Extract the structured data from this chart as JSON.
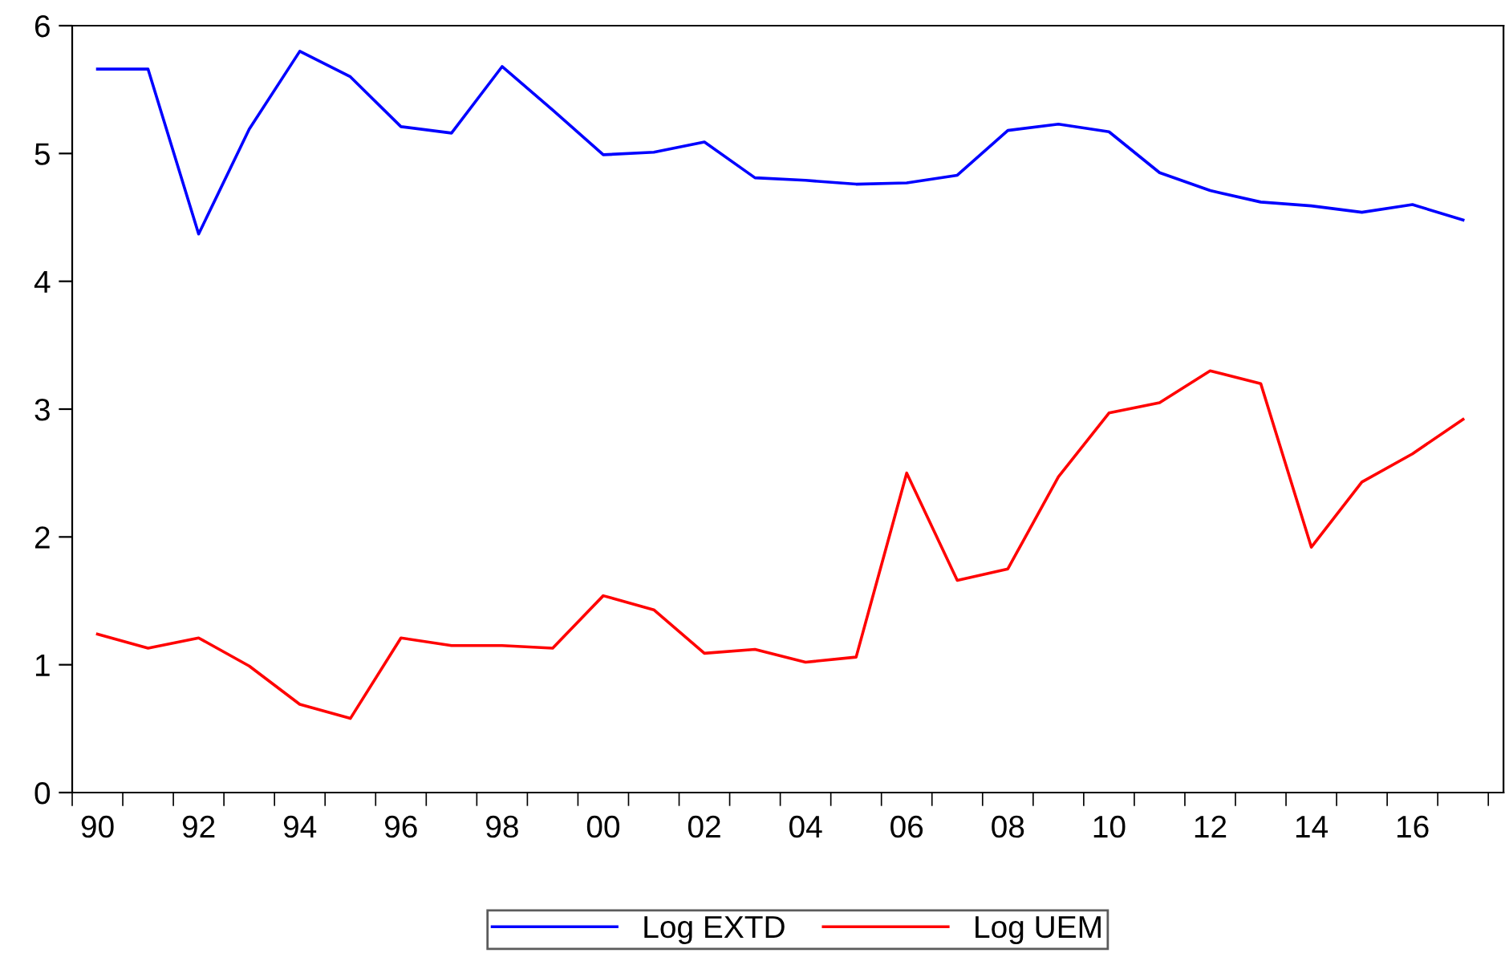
{
  "chart_data": {
    "type": "line",
    "x": [
      1990,
      1991,
      1992,
      1993,
      1994,
      1995,
      1996,
      1997,
      1998,
      1999,
      2000,
      2001,
      2002,
      2003,
      2004,
      2005,
      2006,
      2007,
      2008,
      2009,
      2010,
      2011,
      2012,
      2013,
      2014,
      2015,
      2016,
      2017
    ],
    "series": [
      {
        "name": "Log EXTD",
        "color": "#0000ff",
        "values": [
          5.66,
          5.66,
          4.37,
          5.19,
          5.8,
          5.6,
          5.21,
          5.16,
          5.68,
          5.34,
          4.99,
          5.01,
          5.09,
          4.81,
          4.79,
          4.76,
          4.77,
          4.83,
          5.18,
          5.23,
          5.17,
          4.85,
          4.71,
          4.62,
          4.59,
          4.54,
          4.6,
          4.48
        ]
      },
      {
        "name": "Log UEM",
        "color": "#ff0000",
        "values": [
          1.24,
          1.13,
          1.21,
          0.99,
          0.69,
          0.58,
          1.21,
          1.15,
          1.15,
          1.13,
          1.54,
          1.43,
          1.09,
          1.12,
          1.02,
          1.06,
          2.5,
          1.66,
          1.75,
          2.47,
          2.97,
          3.05,
          3.3,
          3.2,
          1.92,
          2.43,
          2.65,
          2.92
        ]
      }
    ],
    "xlim": [
      1989.5,
      2017.8
    ],
    "xticks": [
      {
        "value": 1989.5,
        "label": null
      },
      {
        "value": 1990,
        "label": "90"
      },
      {
        "value": 1990.5,
        "label": null
      },
      {
        "value": 1991.5,
        "label": null
      },
      {
        "value": 1992,
        "label": "92"
      },
      {
        "value": 1992.5,
        "label": null
      },
      {
        "value": 1993.5,
        "label": null
      },
      {
        "value": 1994,
        "label": "94"
      },
      {
        "value": 1994.5,
        "label": null
      },
      {
        "value": 1995.5,
        "label": null
      },
      {
        "value": 1996,
        "label": "96"
      },
      {
        "value": 1996.5,
        "label": null
      },
      {
        "value": 1997.5,
        "label": null
      },
      {
        "value": 1998,
        "label": "98"
      },
      {
        "value": 1998.5,
        "label": null
      },
      {
        "value": 1999.5,
        "label": null
      },
      {
        "value": 2000,
        "label": "00"
      },
      {
        "value": 2000.5,
        "label": null
      },
      {
        "value": 2001.5,
        "label": null
      },
      {
        "value": 2002,
        "label": "02"
      },
      {
        "value": 2002.5,
        "label": null
      },
      {
        "value": 2003.5,
        "label": null
      },
      {
        "value": 2004,
        "label": "04"
      },
      {
        "value": 2004.5,
        "label": null
      },
      {
        "value": 2005.5,
        "label": null
      },
      {
        "value": 2006,
        "label": "06"
      },
      {
        "value": 2006.5,
        "label": null
      },
      {
        "value": 2007.5,
        "label": null
      },
      {
        "value": 2008,
        "label": "08"
      },
      {
        "value": 2008.5,
        "label": null
      },
      {
        "value": 2009.5,
        "label": null
      },
      {
        "value": 2010,
        "label": "10"
      },
      {
        "value": 2010.5,
        "label": null
      },
      {
        "value": 2011.5,
        "label": null
      },
      {
        "value": 2012,
        "label": "12"
      },
      {
        "value": 2012.5,
        "label": null
      },
      {
        "value": 2013.5,
        "label": null
      },
      {
        "value": 2014,
        "label": "14"
      },
      {
        "value": 2014.5,
        "label": null
      },
      {
        "value": 2015.5,
        "label": null
      },
      {
        "value": 2016,
        "label": "16"
      },
      {
        "value": 2016.5,
        "label": null
      },
      {
        "value": 2017.5,
        "label": null
      }
    ],
    "ylim": [
      0,
      6
    ],
    "yticks": [
      0,
      1,
      2,
      3,
      4,
      5,
      6
    ],
    "grid": false,
    "legend": "bottom",
    "marker": "none",
    "line_style": "solid"
  }
}
